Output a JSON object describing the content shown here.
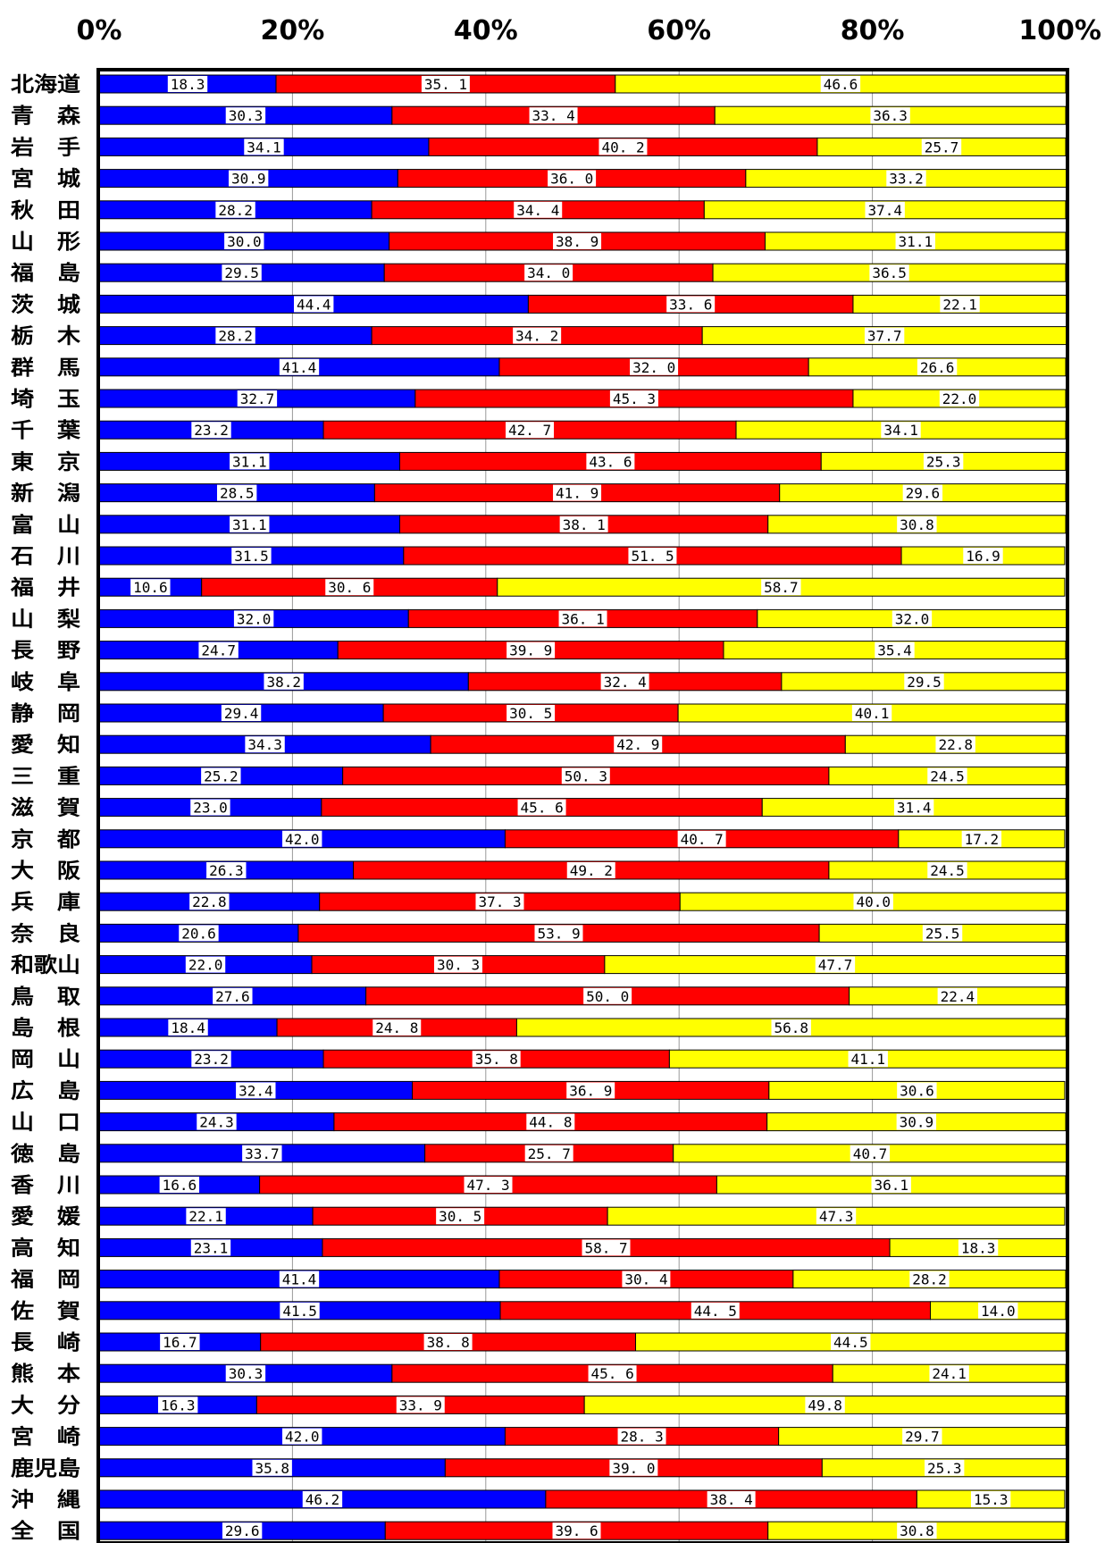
{
  "chart_data": {
    "type": "bar",
    "orientation": "horizontal",
    "stacked": "percent",
    "grid": true,
    "xlim": [
      0,
      100
    ],
    "x_ticks": [
      "0%",
      "20%",
      "40%",
      "60%",
      "80%",
      "100%"
    ],
    "colors": [
      "#0000ff",
      "#ff0000",
      "#ffff00"
    ],
    "categories": [
      "北海道",
      "青　森",
      "岩　手",
      "宮　城",
      "秋　田",
      "山　形",
      "福　島",
      "茨　城",
      "栃　木",
      "群　馬",
      "埼　玉",
      "千　葉",
      "東　京",
      "新　潟",
      "富　山",
      "石　川",
      "福　井",
      "山　梨",
      "長　野",
      "岐　阜",
      "静　岡",
      "愛　知",
      "三　重",
      "滋　賀",
      "京　都",
      "大　阪",
      "兵　庫",
      "奈　良",
      "和歌山",
      "鳥　取",
      "島　根",
      "岡　山",
      "広　島",
      "山　口",
      "徳　島",
      "香　川",
      "愛　媛",
      "高　知",
      "福　岡",
      "佐　賀",
      "長　崎",
      "熊　本",
      "大　分",
      "宮　崎",
      "鹿児島",
      "沖　縄",
      "全　国"
    ],
    "series": [
      {
        "color": "#0000ff",
        "values": [
          18.3,
          30.3,
          34.1,
          30.9,
          28.2,
          30.0,
          29.5,
          44.4,
          28.2,
          41.4,
          32.7,
          23.2,
          31.1,
          28.5,
          31.1,
          31.5,
          10.6,
          32.0,
          24.7,
          38.2,
          29.4,
          34.3,
          25.2,
          23.0,
          42.0,
          26.3,
          22.8,
          20.6,
          22.0,
          27.6,
          18.4,
          23.2,
          32.4,
          24.3,
          33.7,
          16.6,
          22.1,
          23.1,
          41.4,
          41.5,
          16.7,
          30.3,
          16.3,
          42.0,
          35.8,
          46.2,
          29.6
        ],
        "labels": [
          "18.3",
          "30.3",
          "34.1",
          "30.9",
          "28.2",
          "30.0",
          "29.5",
          "44.4",
          "28.2",
          "41.4",
          "32.7",
          "23.2",
          "31.1",
          "28.5",
          "31.1",
          "31.5",
          "10.6",
          "32.0",
          "24.7",
          "38.2",
          "29.4",
          "34.3",
          "25.2",
          "23.0",
          "42.0",
          "26.3",
          "22.8",
          "20.6",
          "22.0",
          "27.6",
          "18.4",
          "23.2",
          "32.4",
          "24.3",
          "33.7",
          "16.6",
          "22.1",
          "23.1",
          "41.4",
          "41.5",
          "16.7",
          "30.3",
          "16.3",
          "42.0",
          "35.8",
          "46.2",
          "29.6"
        ]
      },
      {
        "color": "#ff0000",
        "values": [
          35.1,
          33.4,
          40.2,
          36.0,
          34.4,
          38.9,
          34.0,
          33.6,
          34.2,
          32.0,
          45.3,
          42.7,
          43.6,
          41.9,
          38.1,
          51.5,
          30.6,
          36.1,
          39.9,
          32.4,
          30.5,
          42.9,
          50.3,
          45.6,
          40.7,
          49.2,
          37.3,
          53.9,
          30.3,
          50.0,
          24.8,
          35.8,
          36.9,
          44.8,
          25.7,
          47.3,
          30.5,
          58.7,
          30.4,
          44.5,
          38.8,
          45.6,
          33.9,
          28.3,
          39.0,
          38.4,
          39.6
        ],
        "labels": [
          "35. 1",
          "33. 4",
          "40. 2",
          "36. 0",
          "34. 4",
          "38. 9",
          "34. 0",
          "33. 6",
          "34. 2",
          "32. 0",
          "45. 3",
          "42. 7",
          "43. 6",
          "41. 9",
          "38. 1",
          "51. 5",
          "30. 6",
          "36. 1",
          "39. 9",
          "32. 4",
          "30. 5",
          "42. 9",
          "50. 3",
          "45. 6",
          "40. 7",
          "49. 2",
          "37. 3",
          "53. 9",
          "30. 3",
          "50. 0",
          "24. 8",
          "35. 8",
          "36. 9",
          "44. 8",
          "25. 7",
          "47. 3",
          "30. 5",
          "58. 7",
          "30. 4",
          "44. 5",
          "38. 8",
          "45. 6",
          "33. 9",
          "28. 3",
          "39. 0",
          "38. 4",
          "39. 6"
        ]
      },
      {
        "color": "#ffff00",
        "values": [
          46.6,
          36.3,
          25.7,
          33.2,
          37.4,
          31.1,
          36.5,
          22.1,
          37.7,
          26.6,
          22.0,
          34.1,
          25.3,
          29.6,
          30.8,
          16.9,
          58.7,
          32.0,
          35.4,
          29.5,
          40.1,
          22.8,
          24.5,
          31.4,
          17.2,
          24.5,
          40.0,
          25.5,
          47.7,
          22.4,
          56.8,
          41.1,
          30.6,
          30.9,
          40.7,
          36.1,
          47.3,
          18.3,
          28.2,
          14.0,
          44.5,
          24.1,
          49.8,
          29.7,
          25.3,
          15.3,
          30.8
        ],
        "labels": [
          "46.6",
          "36.3",
          "25.7",
          "33.2",
          "37.4",
          "31.1",
          "36.5",
          "22.1",
          "37.7",
          "26.6",
          "22.0",
          "34.1",
          "25.3",
          "29.6",
          "30.8",
          "16.9",
          "58.7",
          "32.0",
          "35.4",
          "29.5",
          "40.1",
          "22.8",
          "24.5",
          "31.4",
          "17.2",
          "24.5",
          "40.0",
          "25.5",
          "47.7",
          "22.4",
          "56.8",
          "41.1",
          "30.6",
          "30.9",
          "40.7",
          "36.1",
          "47.3",
          "18.3",
          "28.2",
          "14.0",
          "44.5",
          "24.1",
          "49.8",
          "29.7",
          "25.3",
          "15.3",
          "30.8"
        ]
      }
    ]
  }
}
